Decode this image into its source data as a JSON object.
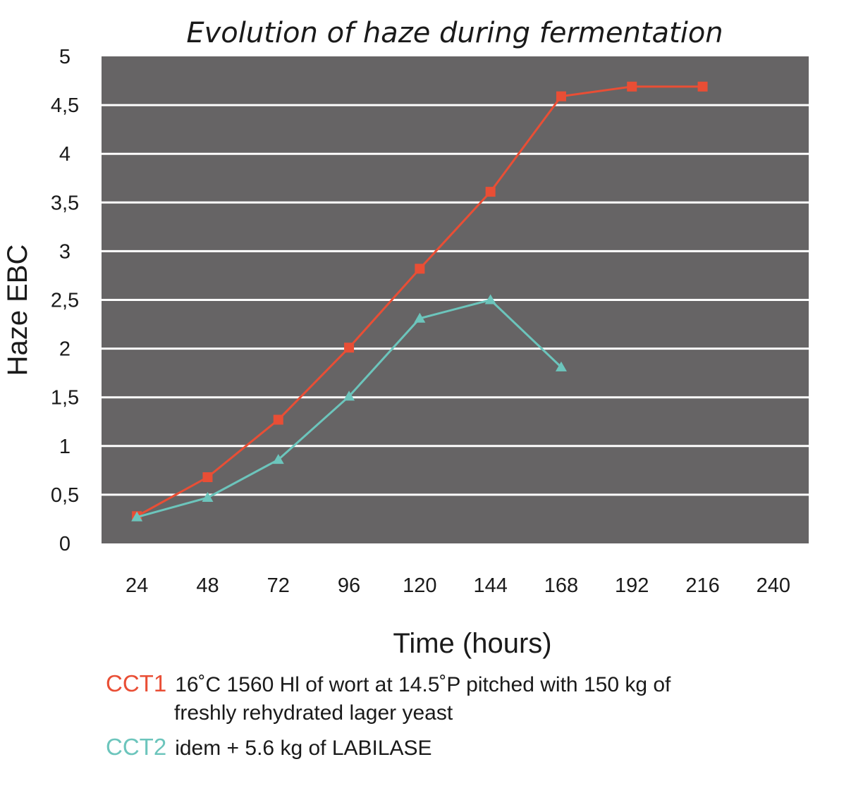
{
  "chart_data": {
    "type": "line",
    "title": "Evolution of haze during fermentation",
    "xlabel": "Time (hours)",
    "ylabel": "Haze EBC",
    "categories": [
      "24",
      "48",
      "72",
      "96",
      "120",
      "144",
      "168",
      "192",
      "216",
      "240"
    ],
    "yticks": [
      "0",
      "0,5",
      "1",
      "1,5",
      "2",
      "2,5",
      "3",
      "3,5",
      "4",
      "4,5",
      "5"
    ],
    "ylim": [
      0,
      5
    ],
    "grid": true,
    "plot_background": "#666465",
    "series": [
      {
        "name": "CCT1",
        "color": "#e94e35",
        "marker": "square",
        "values": [
          0.28,
          0.68,
          1.27,
          2.01,
          2.82,
          3.61,
          4.59,
          4.69,
          4.69,
          null
        ]
      },
      {
        "name": "CCT2",
        "color": "#6cc5bc",
        "marker": "triangle",
        "values": [
          0.27,
          0.47,
          0.86,
          1.51,
          2.31,
          2.5,
          1.81,
          null,
          null,
          null
        ]
      }
    ]
  },
  "legend": {
    "cct1": {
      "tag": "CCT1",
      "line1": "16˚C 1560 Hl of wort at 14.5˚P pitched with 150 kg of",
      "line2": "freshly rehydrated lager yeast"
    },
    "cct2": {
      "tag": "CCT2",
      "line1": "idem + 5.6 kg of LABILASE"
    }
  }
}
